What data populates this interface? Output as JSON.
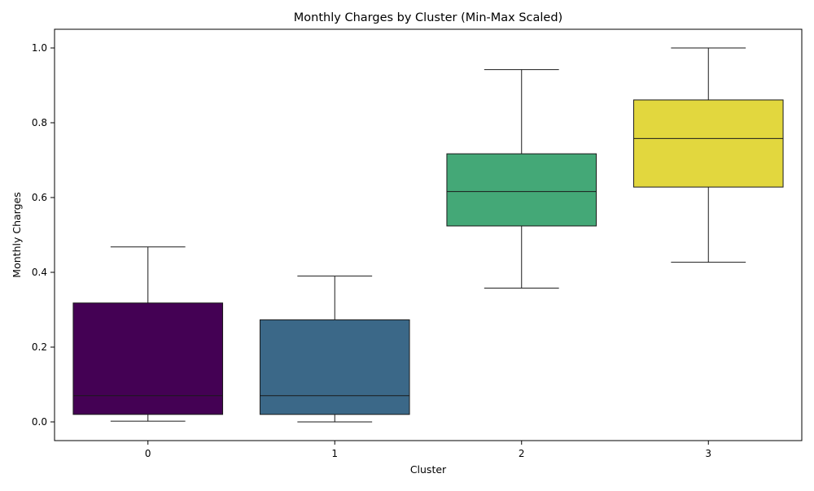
{
  "chart_data": {
    "type": "box",
    "title": "Monthly Charges by Cluster (Min-Max Scaled)",
    "xlabel": "Cluster",
    "ylabel": "Monthly Charges",
    "categories": [
      "0",
      "1",
      "2",
      "3"
    ],
    "ylim": [
      -0.05,
      1.05
    ],
    "yticks": [
      "0.0",
      "0.2",
      "0.4",
      "0.6",
      "0.8",
      "1.0"
    ],
    "grid": false,
    "boxes": [
      {
        "category": "0",
        "min": 0.002,
        "q1": 0.02,
        "median": 0.07,
        "q3": 0.318,
        "max": 0.468,
        "color": "#440154"
      },
      {
        "category": "1",
        "min": 0.0,
        "q1": 0.02,
        "median": 0.07,
        "q3": 0.273,
        "max": 0.39,
        "color": "#3b6888"
      },
      {
        "category": "2",
        "min": 0.358,
        "q1": 0.524,
        "median": 0.616,
        "q3": 0.717,
        "max": 0.942,
        "color": "#44a877"
      },
      {
        "category": "3",
        "min": 0.427,
        "q1": 0.628,
        "median": 0.758,
        "q3": 0.861,
        "max": 1.0,
        "color": "#e2d73e"
      }
    ]
  }
}
